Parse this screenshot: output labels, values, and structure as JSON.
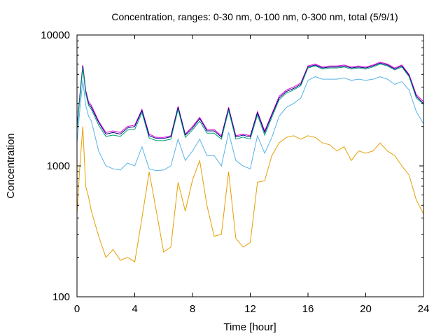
{
  "chart_data": {
    "type": "line",
    "title": "Concentration, ranges: 0-30 nm, 0-100 nm, 0-300 nm, total (5/9/1)",
    "xlabel": "Time [hour]",
    "ylabel": "Concentration",
    "xlim": [
      0,
      24
    ],
    "ylim": [
      100,
      10000
    ],
    "yscale": "log",
    "xticks": [
      "0",
      "4",
      "8",
      "12",
      "16",
      "20",
      "24"
    ],
    "yticks": [
      "100",
      "1000",
      "10000"
    ],
    "grid": false,
    "legend": "none",
    "x": [
      0,
      0.2,
      0.4,
      0.6,
      0.8,
      1,
      1.5,
      2,
      2.5,
      3,
      3.5,
      4,
      4.5,
      5,
      5.5,
      6,
      6.5,
      7,
      7.5,
      8,
      8.5,
      9,
      9.5,
      10,
      10.5,
      11,
      11.5,
      12,
      12.5,
      13,
      13.5,
      14,
      14.5,
      15,
      15.5,
      16,
      16.5,
      17,
      17.5,
      18,
      18.5,
      19,
      19.5,
      20,
      20.5,
      21,
      21.5,
      22,
      22.5,
      23,
      23.5,
      24
    ],
    "series": [
      {
        "color": "#e000e0",
        "values": [
          2000,
          3500,
          5900,
          3800,
          3100,
          2900,
          2200,
          1800,
          1850,
          1800,
          2000,
          2050,
          2700,
          1750,
          1650,
          1650,
          1700,
          2850,
          1750,
          2000,
          2350,
          1900,
          1900,
          1700,
          2800,
          1700,
          1750,
          1700,
          2600,
          1850,
          2500,
          3400,
          3800,
          4000,
          4300,
          5800,
          6000,
          5700,
          5800,
          5800,
          5900,
          5700,
          5800,
          5700,
          5900,
          6200,
          6000,
          5600,
          5900,
          5000,
          3500,
          3100
        ]
      },
      {
        "color": "#000080",
        "values": [
          1950,
          3400,
          5800,
          3700,
          3000,
          2800,
          2150,
          1750,
          1800,
          1750,
          1950,
          2000,
          2650,
          1700,
          1620,
          1620,
          1670,
          2800,
          1720,
          1950,
          2300,
          1850,
          1850,
          1660,
          2750,
          1660,
          1720,
          1660,
          2550,
          1800,
          2450,
          3300,
          3700,
          3900,
          4200,
          5700,
          5900,
          5600,
          5700,
          5700,
          5800,
          5600,
          5700,
          5600,
          5800,
          6100,
          5900,
          5500,
          5800,
          4900,
          3400,
          3000
        ]
      },
      {
        "color": "#009e73",
        "values": [
          1900,
          3300,
          5600,
          3600,
          2900,
          2700,
          2050,
          1680,
          1720,
          1680,
          1880,
          1900,
          2550,
          1630,
          1560,
          1560,
          1600,
          2700,
          1650,
          1880,
          2200,
          1780,
          1780,
          1600,
          2650,
          1600,
          1660,
          1600,
          2450,
          1720,
          2350,
          3200,
          3600,
          3800,
          4100,
          5600,
          5800,
          5500,
          5600,
          5600,
          5700,
          5500,
          5600,
          5500,
          5700,
          6000,
          5800,
          5400,
          5700,
          4800,
          3300,
          2950
        ]
      },
      {
        "color": "#56b4e9",
        "values": [
          1500,
          2700,
          4500,
          2900,
          2400,
          2200,
          1300,
          1000,
          950,
          930,
          1050,
          1000,
          1400,
          950,
          920,
          930,
          1000,
          1600,
          1100,
          1300,
          1600,
          1200,
          1200,
          1000,
          1800,
          1100,
          1000,
          950,
          1700,
          1250,
          1650,
          2400,
          2800,
          3000,
          3300,
          4500,
          4800,
          4600,
          4600,
          4600,
          4700,
          4500,
          4600,
          4500,
          4600,
          4800,
          4600,
          4200,
          4400,
          3800,
          2600,
          2100
        ]
      },
      {
        "color": "#e69f00",
        "values": [
          430,
          1000,
          2000,
          700,
          580,
          450,
          290,
          200,
          230,
          190,
          200,
          185,
          400,
          900,
          450,
          220,
          240,
          750,
          450,
          780,
          1100,
          500,
          290,
          300,
          900,
          280,
          240,
          260,
          750,
          770,
          1200,
          1500,
          1650,
          1700,
          1600,
          1700,
          1650,
          1500,
          1450,
          1300,
          1400,
          1100,
          1300,
          1250,
          1300,
          1500,
          1300,
          1200,
          1000,
          850,
          550,
          430
        ]
      }
    ]
  }
}
